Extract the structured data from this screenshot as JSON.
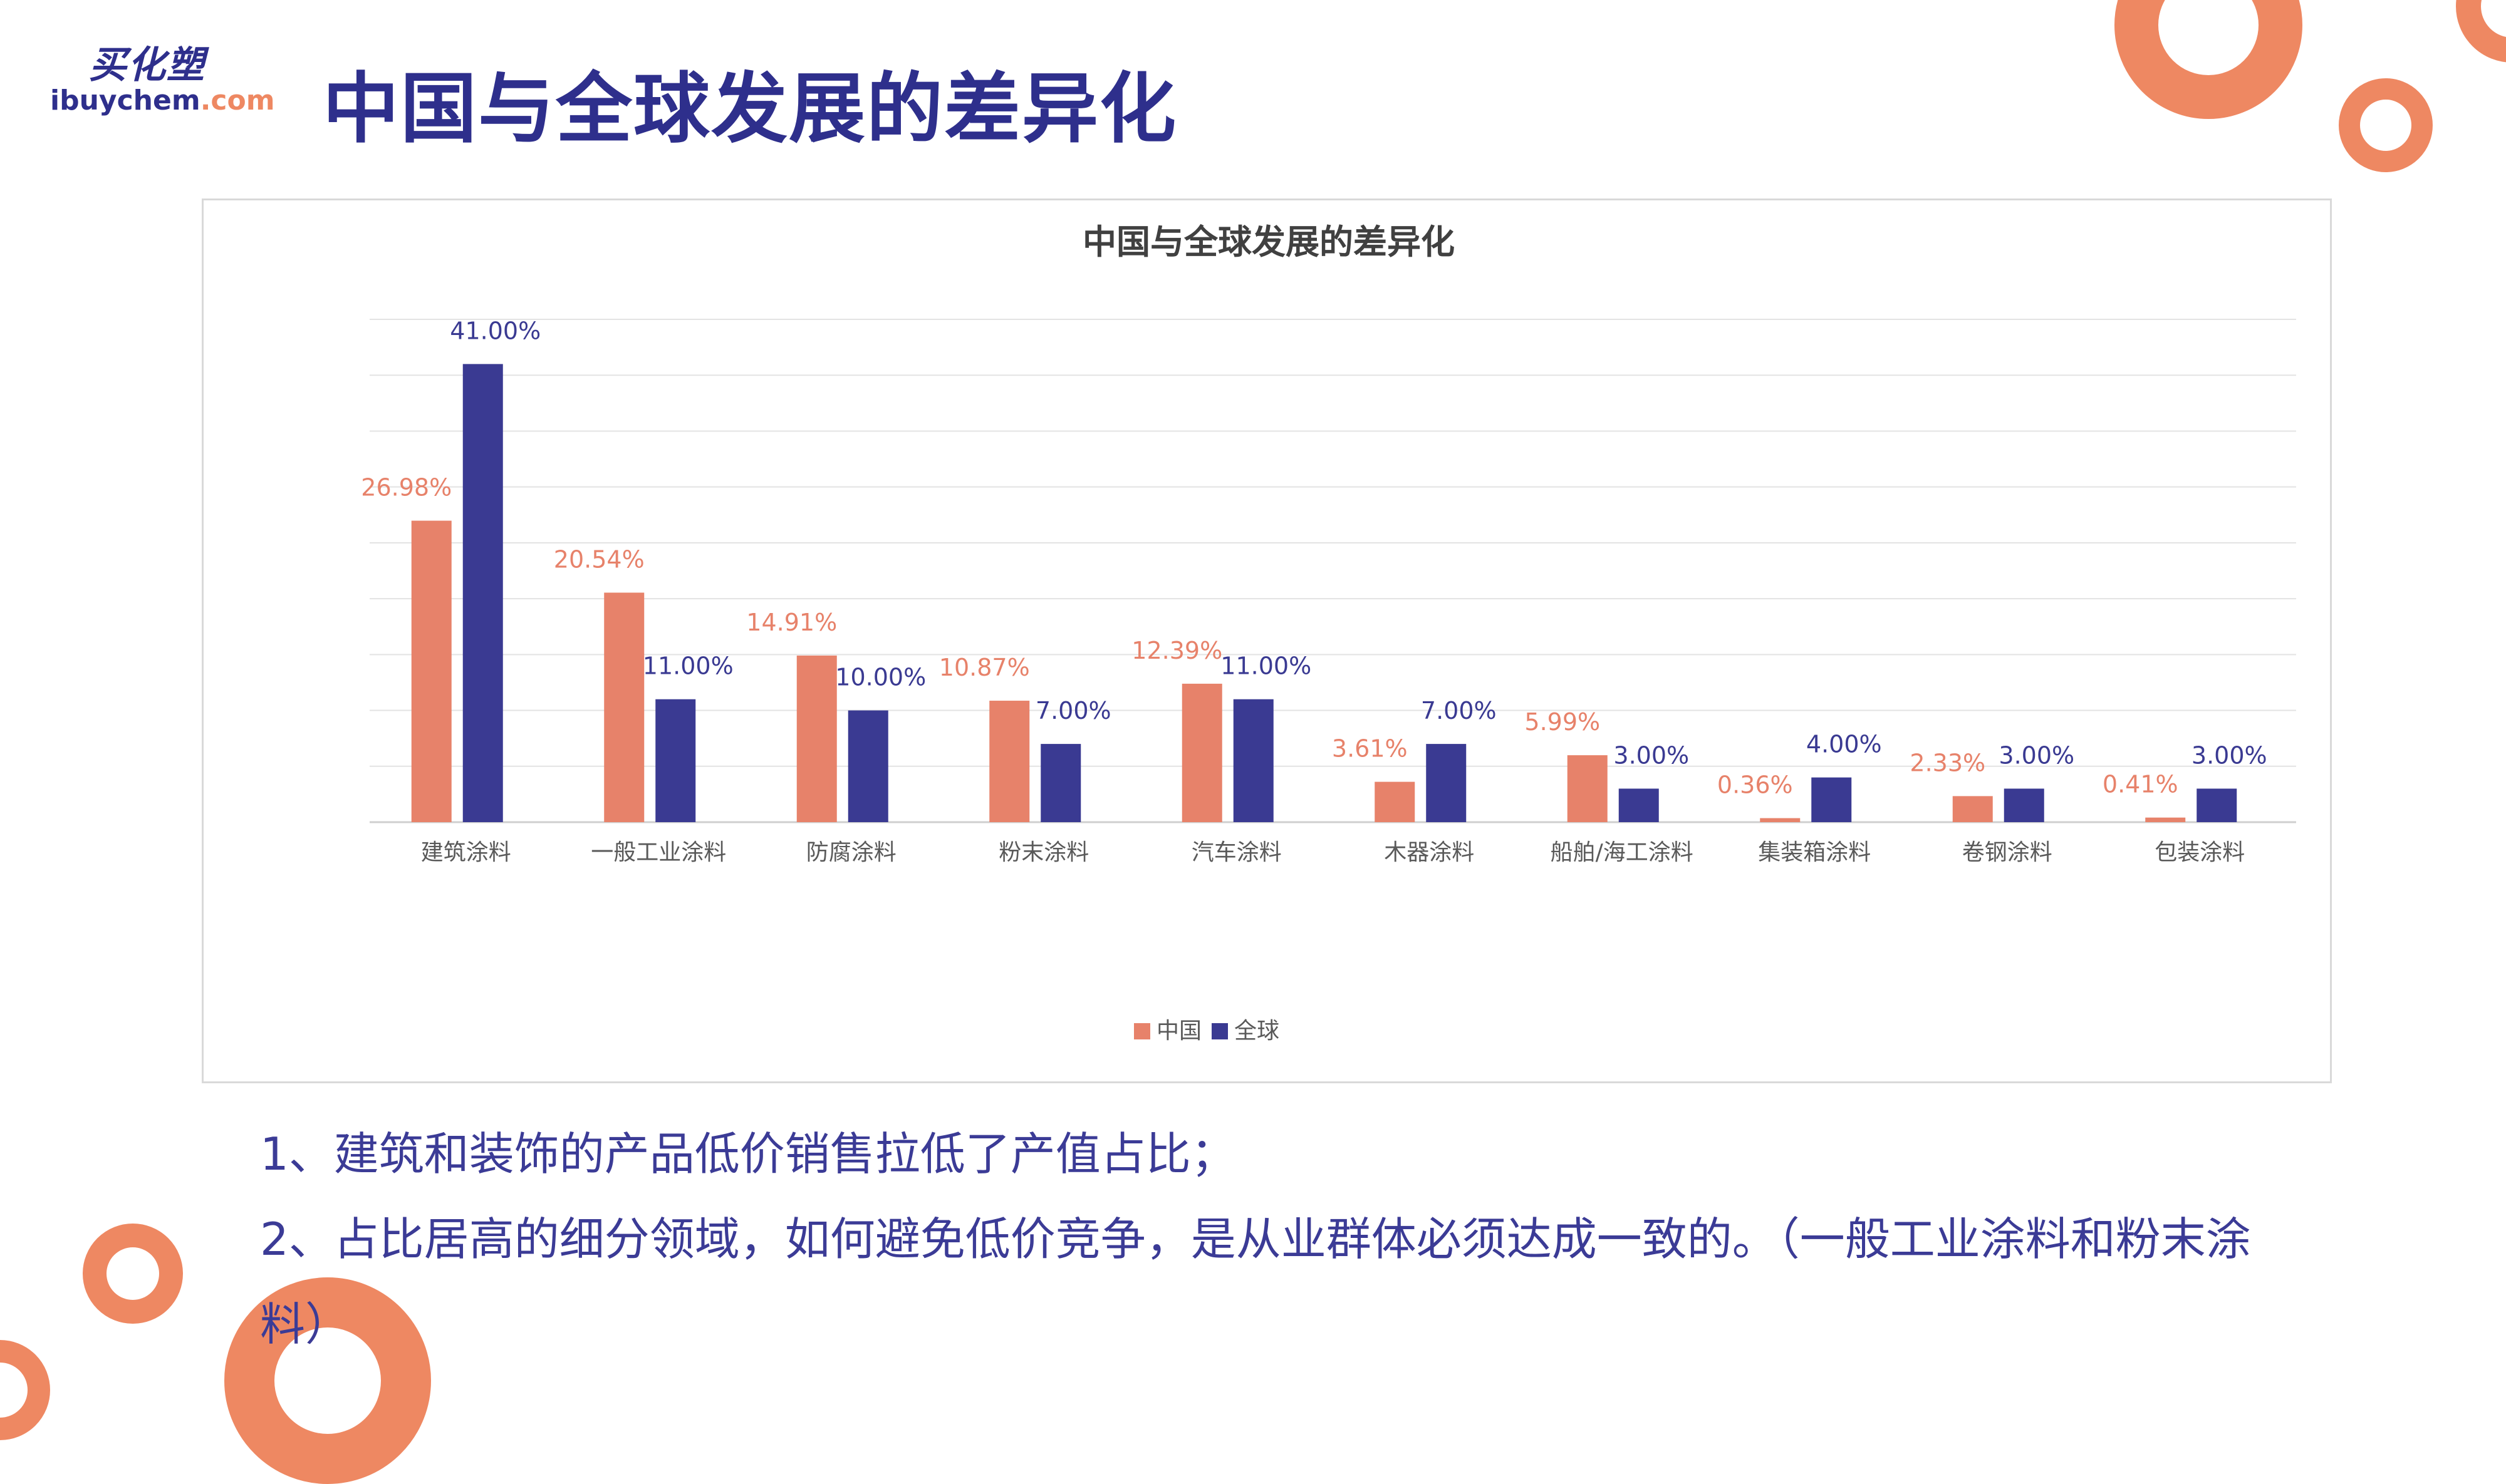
{
  "logo": {
    "cn": "买化塑",
    "en_main": "ibuychem",
    "en_domain": ".com"
  },
  "page_title": "中国与全球发展的差异化",
  "chart_data": {
    "type": "bar",
    "title": "中国与全球发展的差异化",
    "xlabel": "",
    "ylabel": "",
    "ylim": [
      0,
      45
    ],
    "grid": true,
    "legend_position": "bottom",
    "categories": [
      "建筑涂料",
      "一般工业涂料",
      "防腐涂料",
      "粉末涂料",
      "汽车涂料",
      "木器涂料",
      "船舶/海工涂料",
      "集装箱涂料",
      "卷钢涂料",
      "包装涂料"
    ],
    "series": [
      {
        "name": "中国",
        "color": "#e7826a",
        "values": [
          26.98,
          20.54,
          14.91,
          10.87,
          12.39,
          3.61,
          5.99,
          0.36,
          2.33,
          0.41
        ],
        "labels": [
          "26.98%",
          "20.54%",
          "14.91%",
          "10.87%",
          "12.39%",
          "3.61%",
          "5.99%",
          "0.36%",
          "2.33%",
          "0.41%"
        ]
      },
      {
        "name": "全球",
        "color": "#3a3a92",
        "values": [
          41.0,
          11.0,
          10.0,
          7.0,
          11.0,
          7.0,
          3.0,
          4.0,
          3.0,
          3.0
        ],
        "labels": [
          "41.00%",
          "11.00%",
          "10.00%",
          "7.00%",
          "11.00%",
          "7.00%",
          "3.00%",
          "4.00%",
          "3.00%",
          "3.00%"
        ]
      }
    ]
  },
  "notes": [
    "1、建筑和装饰的产品低价销售拉低了产值占比；",
    "2、占比居高的细分领域，如何避免低价竞争，是从业群体必须达成一致的。（一般工业涂料和粉末涂料）"
  ],
  "colors": {
    "accent": "#ee8862",
    "brand": "#2e2f8c"
  }
}
